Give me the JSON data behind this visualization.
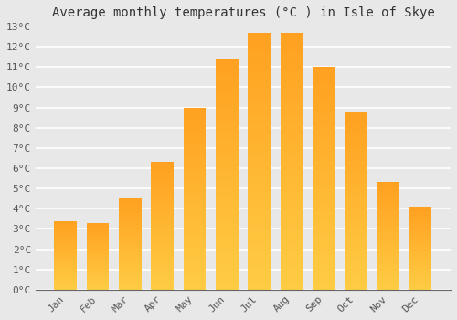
{
  "title": "Average monthly temperatures (°C ) in Isle of Skye",
  "months": [
    "Jan",
    "Feb",
    "Mar",
    "Apr",
    "May",
    "Jun",
    "Jul",
    "Aug",
    "Sep",
    "Oct",
    "Nov",
    "Dec"
  ],
  "values": [
    3.4,
    3.3,
    4.5,
    6.3,
    9.0,
    11.4,
    12.7,
    12.7,
    11.0,
    8.8,
    5.3,
    4.1
  ],
  "bar_color_bottom": "#FFCC44",
  "bar_color_top": "#FFA020",
  "bar_color_left_highlight": "#FFE080",
  "ylim": [
    0,
    13
  ],
  "yticks": [
    0,
    1,
    2,
    3,
    4,
    5,
    6,
    7,
    8,
    9,
    10,
    11,
    12,
    13
  ],
  "ytick_labels": [
    "0°C",
    "1°C",
    "2°C",
    "3°C",
    "4°C",
    "5°C",
    "6°C",
    "7°C",
    "8°C",
    "9°C",
    "10°C",
    "11°C",
    "12°C",
    "13°C"
  ],
  "background_color": "#e8e8e8",
  "plot_area_color": "#e8e8e8",
  "grid_color": "#ffffff",
  "title_fontsize": 10,
  "tick_fontsize": 8,
  "bar_width": 0.7
}
